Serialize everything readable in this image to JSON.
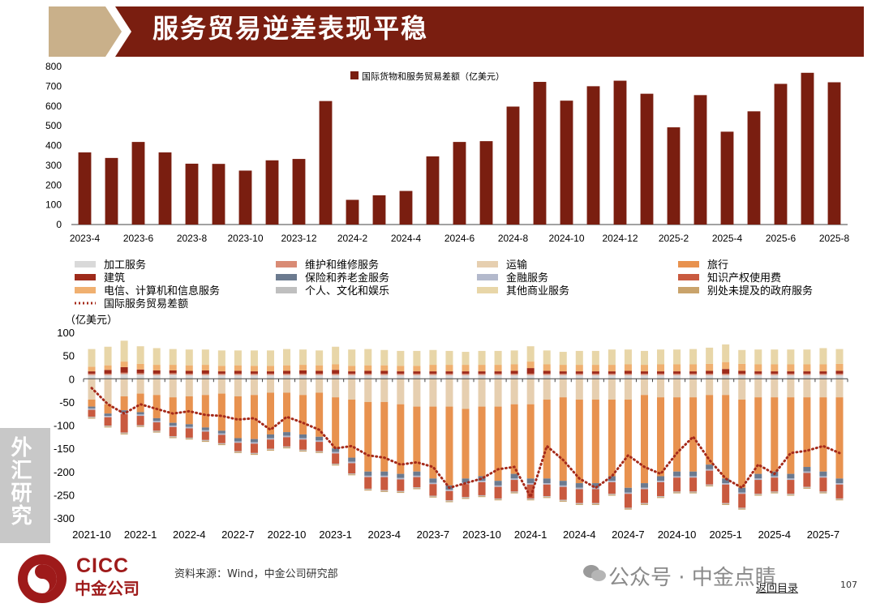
{
  "header": {
    "title": "服务贸易逆差表现平稳"
  },
  "side_tab": {
    "label": "外汇研究"
  },
  "footer": {
    "source": "资料来源：Wind，中金公司研究部",
    "watermark": "公众号 · 中金点睛",
    "back_link": "返回目录",
    "page_number": "107",
    "logo_en": "CICC",
    "logo_cn": "中金公司"
  },
  "colors": {
    "brand": "#7a1e10",
    "title_bg": "#7a1e10",
    "title_accent": "#c9b08a"
  },
  "chart_data": [
    {
      "type": "bar",
      "legend": "国际货物和服务贸易差额（亿美元）",
      "x_tick_labels": [
        "2023-4",
        "2023-6",
        "2023-8",
        "2023-10",
        "2023-12",
        "2024-2",
        "2024-4",
        "2024-6",
        "2024-8",
        "2024-10",
        "2024-12",
        "2025-2",
        "2025-4",
        "2025-6",
        "2025-8"
      ],
      "categories": [
        "2023-4",
        "2023-5",
        "2023-6",
        "2023-7",
        "2023-8",
        "2023-9",
        "2023-10",
        "2023-11",
        "2023-12",
        "2024-1",
        "2024-2",
        "2024-3",
        "2024-4",
        "2024-5",
        "2024-6",
        "2024-7",
        "2024-8",
        "2024-9",
        "2024-10",
        "2024-11",
        "2024-12",
        "2025-1",
        "2025-2",
        "2025-3",
        "2025-4",
        "2025-5",
        "2025-6",
        "2025-7",
        "2025-8"
      ],
      "values": [
        365,
        337,
        418,
        365,
        308,
        307,
        273,
        325,
        332,
        625,
        125,
        148,
        170,
        345,
        418,
        422,
        597,
        722,
        627,
        700,
        728,
        662,
        492,
        655,
        470,
        573,
        712,
        768,
        720
      ],
      "ylim": [
        0,
        800
      ],
      "yticks": [
        0,
        100,
        200,
        300,
        400,
        500,
        600,
        700,
        800
      ],
      "color": "#7a1e10"
    },
    {
      "type": "bar",
      "stacked": true,
      "ylabel": "（亿美元）",
      "ylim": [
        -300,
        100
      ],
      "yticks": [
        100,
        50,
        0,
        -50,
        -100,
        -150,
        -200,
        -250,
        -300
      ],
      "x_tick_labels": [
        "2021-10",
        "2022-1",
        "2022-4",
        "2022-7",
        "2022-10",
        "2023-1",
        "2023-4",
        "2023-7",
        "2023-10",
        "2024-1",
        "2024-4",
        "2024-7",
        "2024-10",
        "2025-1",
        "2025-4",
        "2025-7"
      ],
      "categories": [
        "2021-10",
        "2021-11",
        "2021-12",
        "2022-1",
        "2022-2",
        "2022-3",
        "2022-4",
        "2022-5",
        "2022-6",
        "2022-7",
        "2022-8",
        "2022-9",
        "2022-10",
        "2022-11",
        "2022-12",
        "2023-1",
        "2023-2",
        "2023-3",
        "2023-4",
        "2023-5",
        "2023-6",
        "2023-7",
        "2023-8",
        "2023-9",
        "2023-10",
        "2023-11",
        "2023-12",
        "2024-1",
        "2024-2",
        "2024-3",
        "2024-4",
        "2024-5",
        "2024-6",
        "2024-7",
        "2024-8",
        "2024-9",
        "2024-10",
        "2024-11",
        "2024-12",
        "2025-1",
        "2025-2",
        "2025-3",
        "2025-4",
        "2025-5",
        "2025-6",
        "2025-7",
        "2025-8"
      ],
      "series": [
        {
          "name": "加工服务",
          "color": "#d9d9d9",
          "values": [
            8,
            8,
            10,
            9,
            8,
            9,
            8,
            8,
            8,
            8,
            8,
            8,
            8,
            8,
            8,
            8,
            8,
            8,
            8,
            8,
            8,
            8,
            8,
            8,
            8,
            8,
            8,
            8,
            8,
            8,
            8,
            8,
            8,
            8,
            8,
            8,
            8,
            8,
            8,
            8,
            8,
            8,
            8,
            8,
            8,
            8,
            8
          ]
        },
        {
          "name": "维护和维修服务",
          "color": "#d98b75",
          "values": [
            3,
            3,
            3,
            3,
            3,
            3,
            3,
            3,
            3,
            3,
            3,
            3,
            3,
            3,
            3,
            3,
            3,
            3,
            3,
            3,
            3,
            3,
            3,
            3,
            3,
            3,
            3,
            3,
            3,
            3,
            3,
            3,
            3,
            3,
            3,
            3,
            3,
            3,
            3,
            3,
            3,
            3,
            3,
            3,
            3,
            3,
            3
          ]
        },
        {
          "name": "运输",
          "color": "#e6cfb0",
          "values": [
            -45,
            -55,
            -38,
            -32,
            -35,
            -40,
            -38,
            -35,
            -32,
            -38,
            -35,
            -30,
            -30,
            -35,
            -30,
            -40,
            -45,
            -50,
            -50,
            -55,
            -60,
            -60,
            -60,
            -65,
            -60,
            -60,
            -55,
            -55,
            -45,
            -40,
            -45,
            -45,
            -45,
            -45,
            -35,
            -40,
            -40,
            -40,
            -35,
            -35,
            -45,
            -40,
            -40,
            -40,
            -40,
            -40,
            -40
          ]
        },
        {
          "name": "旅行",
          "color": "#e8924f",
          "values": [
            -15,
            -20,
            -30,
            -40,
            -50,
            -55,
            -60,
            -70,
            -80,
            -90,
            -95,
            -90,
            -85,
            -85,
            -95,
            -110,
            -125,
            -150,
            -150,
            -150,
            -140,
            -155,
            -170,
            -150,
            -150,
            -160,
            -150,
            -160,
            -170,
            -180,
            -180,
            -180,
            -165,
            -190,
            -190,
            -170,
            -160,
            -160,
            -150,
            -180,
            -190,
            -165,
            -160,
            -165,
            -150,
            -160,
            -175
          ]
        },
        {
          "name": "建筑",
          "color": "#9e2a1a",
          "values": [
            5,
            8,
            12,
            8,
            7,
            6,
            6,
            7,
            5,
            6,
            5,
            5,
            6,
            7,
            6,
            8,
            5,
            6,
            6,
            5,
            5,
            5,
            5,
            5,
            5,
            5,
            6,
            12,
            6,
            5,
            5,
            5,
            5,
            6,
            5,
            5,
            5,
            5,
            6,
            10,
            6,
            5,
            5,
            5,
            5,
            5,
            6
          ]
        },
        {
          "name": "保险和养老金服务",
          "color": "#6b7a8f",
          "values": [
            -4,
            -5,
            -5,
            -5,
            -6,
            -6,
            -6,
            -6,
            -6,
            -7,
            -7,
            -8,
            -8,
            -8,
            -8,
            -8,
            -9,
            -9,
            -9,
            -9,
            -9,
            -9,
            -9,
            -9,
            -10,
            -10,
            -10,
            -10,
            -10,
            -10,
            -10,
            -10,
            -10,
            -10,
            -10,
            -10,
            -10,
            -10,
            -10,
            -10,
            -10,
            -10,
            -10,
            -10,
            -10,
            -10,
            -10
          ]
        },
        {
          "name": "金融服务",
          "color": "#b3b9cc",
          "values": [
            -3,
            -3,
            -3,
            -3,
            -3,
            -3,
            -3,
            -3,
            -3,
            -3,
            -3,
            -3,
            -3,
            -3,
            -3,
            -3,
            -3,
            -3,
            -3,
            -3,
            -3,
            -3,
            -3,
            -3,
            -3,
            -3,
            -3,
            -3,
            -3,
            -3,
            -3,
            -3,
            -3,
            -3,
            -3,
            -3,
            -3,
            -3,
            -3,
            -3,
            -3,
            -3,
            -3,
            -3,
            -3,
            -3,
            -3
          ]
        },
        {
          "name": "知识产权使用费",
          "color": "#c95a3f",
          "values": [
            -15,
            -18,
            -40,
            -20,
            -18,
            -20,
            -20,
            -18,
            -18,
            -18,
            -20,
            -20,
            -20,
            -22,
            -20,
            -22,
            -22,
            -25,
            -28,
            -25,
            -22,
            -25,
            -20,
            -28,
            -28,
            -25,
            -25,
            -30,
            -25,
            -28,
            -30,
            -30,
            -25,
            -30,
            -30,
            -30,
            -30,
            -30,
            -30,
            -40,
            -30,
            -30,
            -30,
            -30,
            -30,
            -30,
            -30
          ]
        },
        {
          "name": "电信、计算机和信息服务",
          "color": "#f0b070",
          "values": [
            10,
            10,
            12,
            12,
            12,
            12,
            12,
            12,
            12,
            12,
            12,
            12,
            12,
            12,
            12,
            12,
            12,
            12,
            12,
            12,
            12,
            14,
            14,
            14,
            14,
            14,
            14,
            14,
            14,
            14,
            14,
            14,
            14,
            14,
            14,
            15,
            15,
            15,
            15,
            15,
            15,
            15,
            15,
            15,
            15,
            15,
            15
          ]
        },
        {
          "name": "个人、文化和娱乐",
          "color": "#bfbfbf",
          "values": [
            -2,
            -2,
            -2,
            -2,
            -2,
            -2,
            -2,
            -2,
            -2,
            -2,
            -2,
            -2,
            -2,
            -2,
            -2,
            -2,
            -2,
            -2,
            -2,
            -2,
            -2,
            -2,
            -2,
            -2,
            -2,
            -2,
            -2,
            -2,
            -2,
            -2,
            -2,
            -2,
            -2,
            -2,
            -2,
            -2,
            -2,
            -2,
            -2,
            -2,
            -2,
            -2,
            -2,
            -2,
            -2,
            -2,
            -2
          ]
        },
        {
          "name": "其他商业服务",
          "color": "#e8d6a8",
          "values": [
            38,
            40,
            45,
            38,
            36,
            34,
            34,
            33,
            33,
            32,
            33,
            33,
            35,
            33,
            32,
            38,
            35,
            35,
            33,
            32,
            32,
            32,
            30,
            28,
            30,
            30,
            30,
            33,
            30,
            28,
            30,
            30,
            33,
            32,
            30,
            32,
            32,
            33,
            35,
            38,
            30,
            32,
            32,
            32,
            32,
            35,
            32
          ]
        },
        {
          "name": "别处未提及的政府服务",
          "color": "#c9a36b",
          "values": [
            -2,
            -2,
            -2,
            -2,
            -2,
            -2,
            -2,
            -2,
            -2,
            -2,
            -2,
            -2,
            -2,
            -2,
            -2,
            -2,
            -2,
            -2,
            -2,
            -2,
            -2,
            -2,
            -2,
            -2,
            -2,
            -2,
            -2,
            -2,
            -2,
            -2,
            -2,
            -2,
            -2,
            -2,
            -2,
            -2,
            -2,
            -2,
            -2,
            -2,
            -2,
            -2,
            -2,
            -2,
            -2,
            -2,
            -2
          ]
        }
      ],
      "balance": {
        "name": "国际服务贸易差额",
        "color": "#a52a1a",
        "style": "dotted",
        "values": [
          -20,
          -55,
          -75,
          -55,
          -65,
          -75,
          -70,
          -78,
          -80,
          -88,
          -85,
          -110,
          -82,
          -95,
          -110,
          -150,
          -145,
          -165,
          -170,
          -185,
          -180,
          -190,
          -235,
          -225,
          -215,
          -195,
          -190,
          -255,
          -145,
          -175,
          -215,
          -235,
          -210,
          -165,
          -190,
          -205,
          -160,
          -125,
          -175,
          -215,
          -235,
          -185,
          -205,
          -160,
          -155,
          -145,
          -160
        ]
      }
    }
  ]
}
